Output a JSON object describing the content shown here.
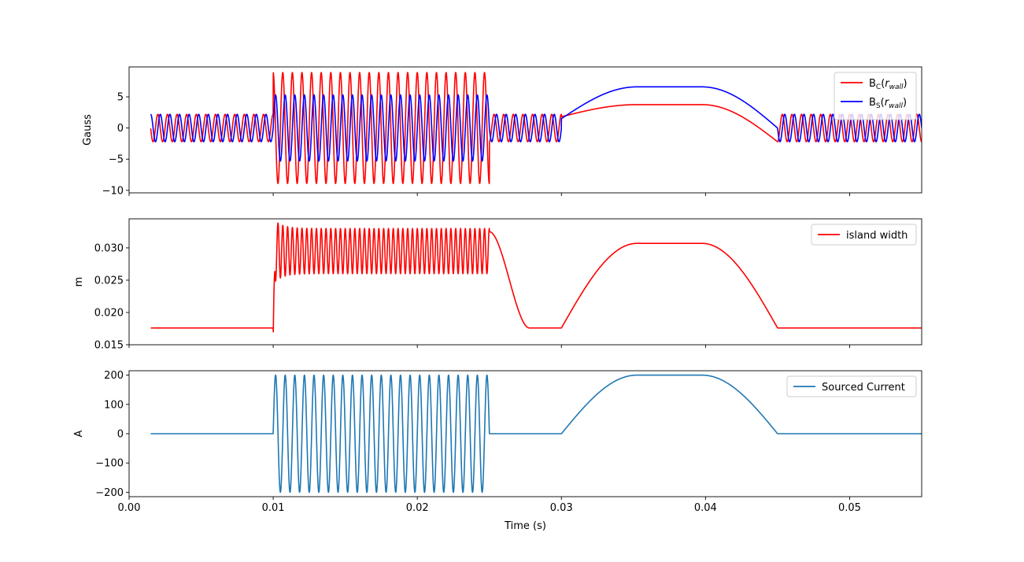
{
  "chart_data": [
    {
      "type": "line",
      "ylabel": "Gauss",
      "xlim": [
        0.0,
        0.055
      ],
      "ylim": [
        -10.4,
        9.8
      ],
      "x_ticks": [
        0.0,
        0.01,
        0.02,
        0.03,
        0.04,
        0.05
      ],
      "y_ticks": [
        -10,
        -5,
        0,
        5
      ],
      "y_tick_labels": [
        "−10",
        "−5",
        "0",
        "5"
      ],
      "grid": false,
      "legend_position": "top-right",
      "series": [
        {
          "name": "B_C(r_wall)",
          "label_main": "B",
          "label_sub": "C",
          "label_arg": "r",
          "label_arg_sub": "wall",
          "color": "#ff0000",
          "segments": [
            {
              "x_range": [
                0.0015,
                0.01
              ],
              "mode": "oscillation",
              "period_s": 0.0006667,
              "amplitude": 2.2,
              "phase": 1.6
            },
            {
              "x_range": [
                0.01,
                0.025
              ],
              "mode": "oscillation",
              "period_s": 0.0006667,
              "amplitude": 8.9,
              "phase": 1.6
            },
            {
              "x_range": [
                0.025,
                0.03
              ],
              "mode": "oscillation",
              "period_s": 0.0006667,
              "amplitude": 2.2,
              "phase": 1.6
            },
            {
              "x_range": [
                0.03,
                0.045
              ],
              "mode": "plateau",
              "start": 1.8,
              "level": 3.75,
              "end": -2.2
            },
            {
              "x_range": [
                0.045,
                0.055
              ],
              "mode": "oscillation",
              "period_s": 0.0006667,
              "amplitude": 2.2,
              "phase": 1.6
            }
          ]
        },
        {
          "name": "B_S(r_wall)",
          "label_main": "B",
          "label_sub": "S",
          "label_arg": "r",
          "label_arg_sub": "wall",
          "color": "#0000ff",
          "segments": [
            {
              "x_range": [
                0.0015,
                0.01
              ],
              "mode": "oscillation",
              "period_s": 0.0006667,
              "amplitude": 2.2,
              "phase": 0.0
            },
            {
              "x_range": [
                0.01,
                0.025
              ],
              "mode": "oscillation",
              "period_s": 0.0006667,
              "amplitude": 5.3,
              "phase": 0.0
            },
            {
              "x_range": [
                0.025,
                0.03
              ],
              "mode": "oscillation",
              "period_s": 0.0006667,
              "amplitude": 2.2,
              "phase": 0.0
            },
            {
              "x_range": [
                0.03,
                0.045
              ],
              "mode": "plateau",
              "start": 1.5,
              "level": 6.6,
              "end": 0.0
            },
            {
              "x_range": [
                0.045,
                0.055
              ],
              "mode": "oscillation",
              "period_s": 0.0006667,
              "amplitude": 2.2,
              "phase": 0.0
            }
          ]
        }
      ]
    },
    {
      "type": "line",
      "ylabel": "m",
      "xlim": [
        0.0,
        0.055
      ],
      "ylim": [
        0.015,
        0.0345
      ],
      "x_ticks": [
        0.0,
        0.01,
        0.02,
        0.03,
        0.04,
        0.05
      ],
      "y_ticks": [
        0.015,
        0.02,
        0.025,
        0.03
      ],
      "y_tick_labels": [
        "0.015",
        "0.020",
        "0.025",
        "0.030"
      ],
      "grid": false,
      "legend_position": "top-right",
      "series": [
        {
          "name": "island width",
          "label_main": "island width",
          "color": "#ff0000",
          "segments": [
            {
              "x_range": [
                0.0015,
                0.01
              ],
              "mode": "constant",
              "level": 0.0176
            },
            {
              "x_range": [
                0.01,
                0.025
              ],
              "mode": "oscillation_band",
              "period_s": 0.0003333,
              "low": 0.026,
              "high": 0.033,
              "dip": 0.016
            },
            {
              "x_range": [
                0.025,
                0.03
              ],
              "mode": "decay",
              "start": 0.0325,
              "level": 0.0176
            },
            {
              "x_range": [
                0.03,
                0.045
              ],
              "mode": "plateau",
              "start": 0.0176,
              "level": 0.0307,
              "end": 0.0176
            },
            {
              "x_range": [
                0.045,
                0.055
              ],
              "mode": "constant",
              "level": 0.0176
            }
          ]
        }
      ]
    },
    {
      "type": "line",
      "xlabel": "Time (s)",
      "ylabel": "A",
      "xlim": [
        0.0,
        0.055
      ],
      "ylim": [
        -215,
        215
      ],
      "x_ticks": [
        0.0,
        0.01,
        0.02,
        0.03,
        0.04,
        0.05
      ],
      "x_tick_labels": [
        "0.00",
        "0.01",
        "0.02",
        "0.03",
        "0.04",
        "0.05"
      ],
      "y_ticks": [
        -200,
        -100,
        0,
        100,
        200
      ],
      "y_tick_labels": [
        "−200",
        "−100",
        "0",
        "100",
        "200"
      ],
      "grid": false,
      "legend_position": "top-right",
      "series": [
        {
          "name": "Sourced Current",
          "label_main": "Sourced Current",
          "color": "#1f77b4",
          "segments": [
            {
              "x_range": [
                0.0015,
                0.01
              ],
              "mode": "constant",
              "level": 0
            },
            {
              "x_range": [
                0.01,
                0.025
              ],
              "mode": "oscillation",
              "period_s": 0.0006667,
              "amplitude": 200,
              "phase": 0.0
            },
            {
              "x_range": [
                0.025,
                0.03
              ],
              "mode": "constant",
              "level": 0
            },
            {
              "x_range": [
                0.03,
                0.045
              ],
              "mode": "plateau",
              "start": 0,
              "level": 200,
              "end": 0
            },
            {
              "x_range": [
                0.045,
                0.055
              ],
              "mode": "constant",
              "level": 0
            }
          ]
        }
      ]
    }
  ]
}
